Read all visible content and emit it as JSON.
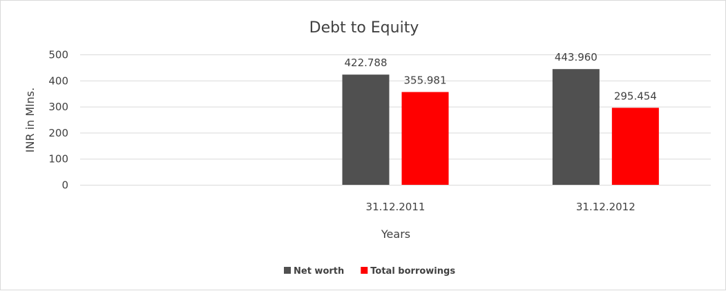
{
  "chart_data": {
    "type": "bar",
    "title": "Debt to Equity",
    "xlabel": "Years",
    "ylabel": "INR in Mlns.",
    "categories": [
      "",
      "31.12.2011",
      "31.12.2012"
    ],
    "series": [
      {
        "name": "Net worth",
        "color": "#505050",
        "values": [
          null,
          422.788,
          443.96
        ],
        "labels": [
          "",
          "422.788",
          "443.960"
        ]
      },
      {
        "name": "Total borrowings",
        "color": "#FF0000",
        "values": [
          null,
          355.981,
          295.454
        ],
        "labels": [
          "",
          "355.981",
          "295.454"
        ]
      }
    ],
    "ylim": [
      0,
      500
    ],
    "yticks": [
      "0",
      "100",
      "200",
      "300",
      "400",
      "500"
    ],
    "grid": true,
    "legend": "bottom"
  }
}
